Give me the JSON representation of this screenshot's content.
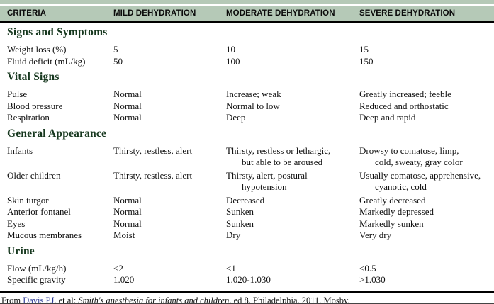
{
  "colors": {
    "header_bg": "#b5c9b7",
    "section_title": "#17381f",
    "link": "#2e3a97"
  },
  "table": {
    "columns": [
      "CRITERIA",
      "MILD DEHYDRATION",
      "MODERATE DEHYDRATION",
      "SEVERE DEHYDRATION"
    ],
    "sections": [
      {
        "title": "Signs and Symptoms",
        "rows": [
          {
            "label": "Weight loss (%)",
            "values": [
              "5",
              "10",
              "15"
            ]
          },
          {
            "label": "Fluid deficit (mL/kg)",
            "values": [
              "50",
              "100",
              "150"
            ]
          }
        ]
      },
      {
        "title": "Vital Signs",
        "rows": [
          {
            "label": "Pulse",
            "values": [
              "Normal",
              "Increase; weak",
              "Greatly increased; feeble"
            ]
          },
          {
            "label": "Blood pressure",
            "values": [
              "Normal",
              "Normal to low",
              "Reduced and orthostatic"
            ]
          },
          {
            "label": "Respiration",
            "values": [
              "Normal",
              "Deep",
              "Deep and rapid"
            ]
          }
        ]
      },
      {
        "title": "General Appearance",
        "rows": [
          {
            "label": "Infants",
            "values": [
              "Thirsty, restless, alert",
              "Thirsty, restless or lethargic,\nbut able to be aroused",
              "Drowsy to comatose, limp,\ncold, sweaty, gray color"
            ]
          },
          {
            "label": "Older children",
            "values": [
              "Thirsty, restless, alert",
              "Thirsty, alert, postural\nhypotension",
              "Usually comatose, apprehensive,\ncyanotic, cold"
            ]
          },
          {
            "label": "Skin turgor",
            "values": [
              "Normal",
              "Decreased",
              "Greatly decreased"
            ]
          },
          {
            "label": "Anterior fontanel",
            "values": [
              "Normal",
              "Sunken",
              "Markedly depressed"
            ]
          },
          {
            "label": "Eyes",
            "values": [
              "Normal",
              "Sunken",
              "Markedly sunken"
            ]
          },
          {
            "label": "Mucous membranes",
            "values": [
              "Moist",
              "Dry",
              "Very dry"
            ]
          }
        ]
      },
      {
        "title": "Urine",
        "rows": [
          {
            "label": "Flow (mL/kg/h)",
            "values": [
              "<2",
              "<1",
              "<0.5"
            ]
          },
          {
            "label": "Specific gravity",
            "values": [
              "1.020",
              "1.020-1.030",
              ">1.030"
            ]
          }
        ]
      }
    ]
  },
  "footer": {
    "prefix": "From ",
    "link": "Davis PJ",
    "middle": ", et al: ",
    "italic": "Smith's anesthesia for infants and children,",
    "suffix": " ed 8, Philadelphia, 2011, Mosby."
  }
}
